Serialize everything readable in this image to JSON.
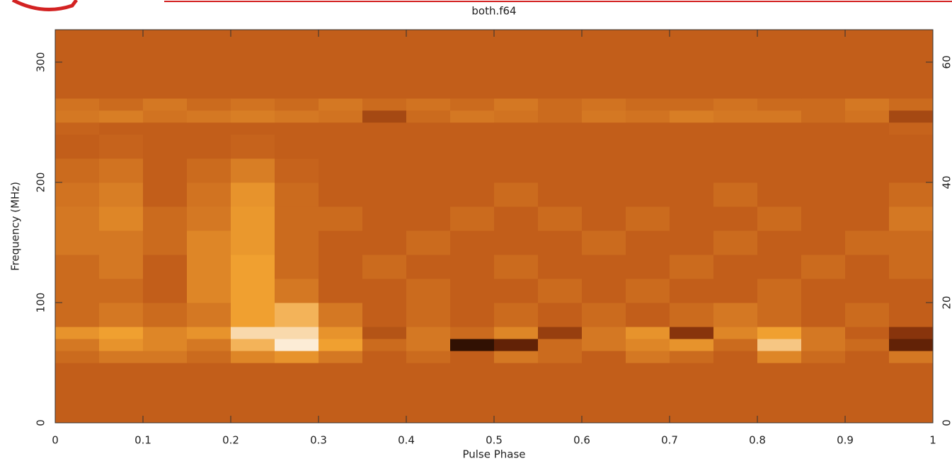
{
  "chart_data": {
    "type": "heatmap",
    "title": "both.f64",
    "xlabel": "Pulse Phase",
    "ylabel": "Frequency (MHz)",
    "xbins": [
      0,
      0.05,
      0.1,
      0.15,
      0.2,
      0.25,
      0.3,
      0.35,
      0.4,
      0.45,
      0.5,
      0.55,
      0.6,
      0.65,
      0.7,
      0.75,
      0.8,
      0.85,
      0.9,
      0.95,
      1
    ],
    "ybins": [
      0,
      50,
      60,
      70,
      80,
      100,
      120,
      140,
      160,
      180,
      200,
      220,
      240,
      250,
      260,
      270,
      327
    ],
    "z": [
      [
        0.5,
        0.5,
        0.5,
        0.5,
        0.5,
        0.5,
        0.5,
        0.5,
        0.5,
        0.5,
        0.5,
        0.5,
        0.5,
        0.5,
        0.5,
        0.5,
        0.5,
        0.5,
        0.5,
        0.5
      ],
      [
        0.55,
        0.6,
        0.6,
        0.55,
        0.65,
        0.7,
        0.6,
        0.5,
        0.55,
        0.5,
        0.6,
        0.55,
        0.5,
        0.6,
        0.55,
        0.5,
        0.65,
        0.55,
        0.5,
        0.6
      ],
      [
        0.6,
        0.7,
        0.65,
        0.6,
        0.8,
        0.95,
        0.75,
        0.55,
        0.6,
        0.1,
        0.2,
        0.55,
        0.6,
        0.65,
        0.7,
        0.55,
        0.85,
        0.6,
        0.55,
        0.2
      ],
      [
        0.7,
        0.75,
        0.65,
        0.7,
        0.9,
        0.9,
        0.7,
        0.45,
        0.6,
        0.55,
        0.65,
        0.35,
        0.6,
        0.7,
        0.3,
        0.65,
        0.75,
        0.6,
        0.5,
        0.3
      ],
      [
        0.55,
        0.6,
        0.55,
        0.6,
        0.75,
        0.8,
        0.6,
        0.5,
        0.55,
        0.5,
        0.55,
        0.5,
        0.55,
        0.5,
        0.55,
        0.6,
        0.55,
        0.5,
        0.55,
        0.5
      ],
      [
        0.55,
        0.55,
        0.5,
        0.65,
        0.75,
        0.6,
        0.5,
        0.5,
        0.55,
        0.5,
        0.5,
        0.55,
        0.5,
        0.55,
        0.5,
        0.5,
        0.55,
        0.5,
        0.5,
        0.5
      ],
      [
        0.55,
        0.6,
        0.5,
        0.65,
        0.75,
        0.55,
        0.5,
        0.55,
        0.5,
        0.5,
        0.55,
        0.5,
        0.5,
        0.5,
        0.55,
        0.5,
        0.5,
        0.55,
        0.5,
        0.55
      ],
      [
        0.6,
        0.6,
        0.55,
        0.65,
        0.72,
        0.55,
        0.5,
        0.5,
        0.55,
        0.5,
        0.5,
        0.5,
        0.55,
        0.5,
        0.5,
        0.55,
        0.5,
        0.5,
        0.55,
        0.55
      ],
      [
        0.6,
        0.65,
        0.55,
        0.6,
        0.72,
        0.55,
        0.55,
        0.5,
        0.5,
        0.55,
        0.5,
        0.55,
        0.5,
        0.55,
        0.5,
        0.5,
        0.55,
        0.5,
        0.5,
        0.6
      ],
      [
        0.58,
        0.62,
        0.5,
        0.58,
        0.7,
        0.55,
        0.5,
        0.5,
        0.5,
        0.5,
        0.55,
        0.5,
        0.5,
        0.5,
        0.5,
        0.55,
        0.5,
        0.5,
        0.5,
        0.55
      ],
      [
        0.55,
        0.58,
        0.5,
        0.55,
        0.62,
        0.52,
        0.5,
        0.5,
        0.5,
        0.5,
        0.5,
        0.5,
        0.5,
        0.5,
        0.5,
        0.5,
        0.5,
        0.5,
        0.5,
        0.5
      ],
      [
        0.5,
        0.52,
        0.5,
        0.5,
        0.52,
        0.5,
        0.5,
        0.5,
        0.5,
        0.5,
        0.5,
        0.5,
        0.5,
        0.5,
        0.5,
        0.5,
        0.5,
        0.5,
        0.5,
        0.5
      ],
      [
        0.52,
        0.5,
        0.5,
        0.5,
        0.5,
        0.5,
        0.5,
        0.5,
        0.5,
        0.5,
        0.5,
        0.5,
        0.5,
        0.5,
        0.5,
        0.5,
        0.5,
        0.5,
        0.5,
        0.52
      ],
      [
        0.6,
        0.62,
        0.58,
        0.6,
        0.62,
        0.6,
        0.58,
        0.4,
        0.55,
        0.6,
        0.58,
        0.55,
        0.6,
        0.58,
        0.62,
        0.6,
        0.6,
        0.55,
        0.58,
        0.4
      ],
      [
        0.58,
        0.55,
        0.6,
        0.55,
        0.58,
        0.55,
        0.6,
        0.55,
        0.58,
        0.55,
        0.6,
        0.55,
        0.58,
        0.55,
        0.55,
        0.58,
        0.55,
        0.55,
        0.6,
        0.55
      ],
      [
        0.5,
        0.5,
        0.5,
        0.5,
        0.5,
        0.5,
        0.5,
        0.5,
        0.5,
        0.5,
        0.5,
        0.5,
        0.5,
        0.5,
        0.5,
        0.5,
        0.5,
        0.5,
        0.5,
        0.5
      ]
    ],
    "xlim": [
      0,
      1
    ],
    "xticks": [
      0,
      0.1,
      0.2,
      0.3,
      0.4,
      0.5,
      0.6,
      0.7,
      0.8,
      0.9,
      1
    ],
    "ylim": [
      0,
      327
    ],
    "yticks": [
      0,
      100,
      200,
      300
    ],
    "y2lim": [
      0,
      65.4
    ],
    "y2ticks": [
      0,
      20,
      40,
      60
    ]
  }
}
